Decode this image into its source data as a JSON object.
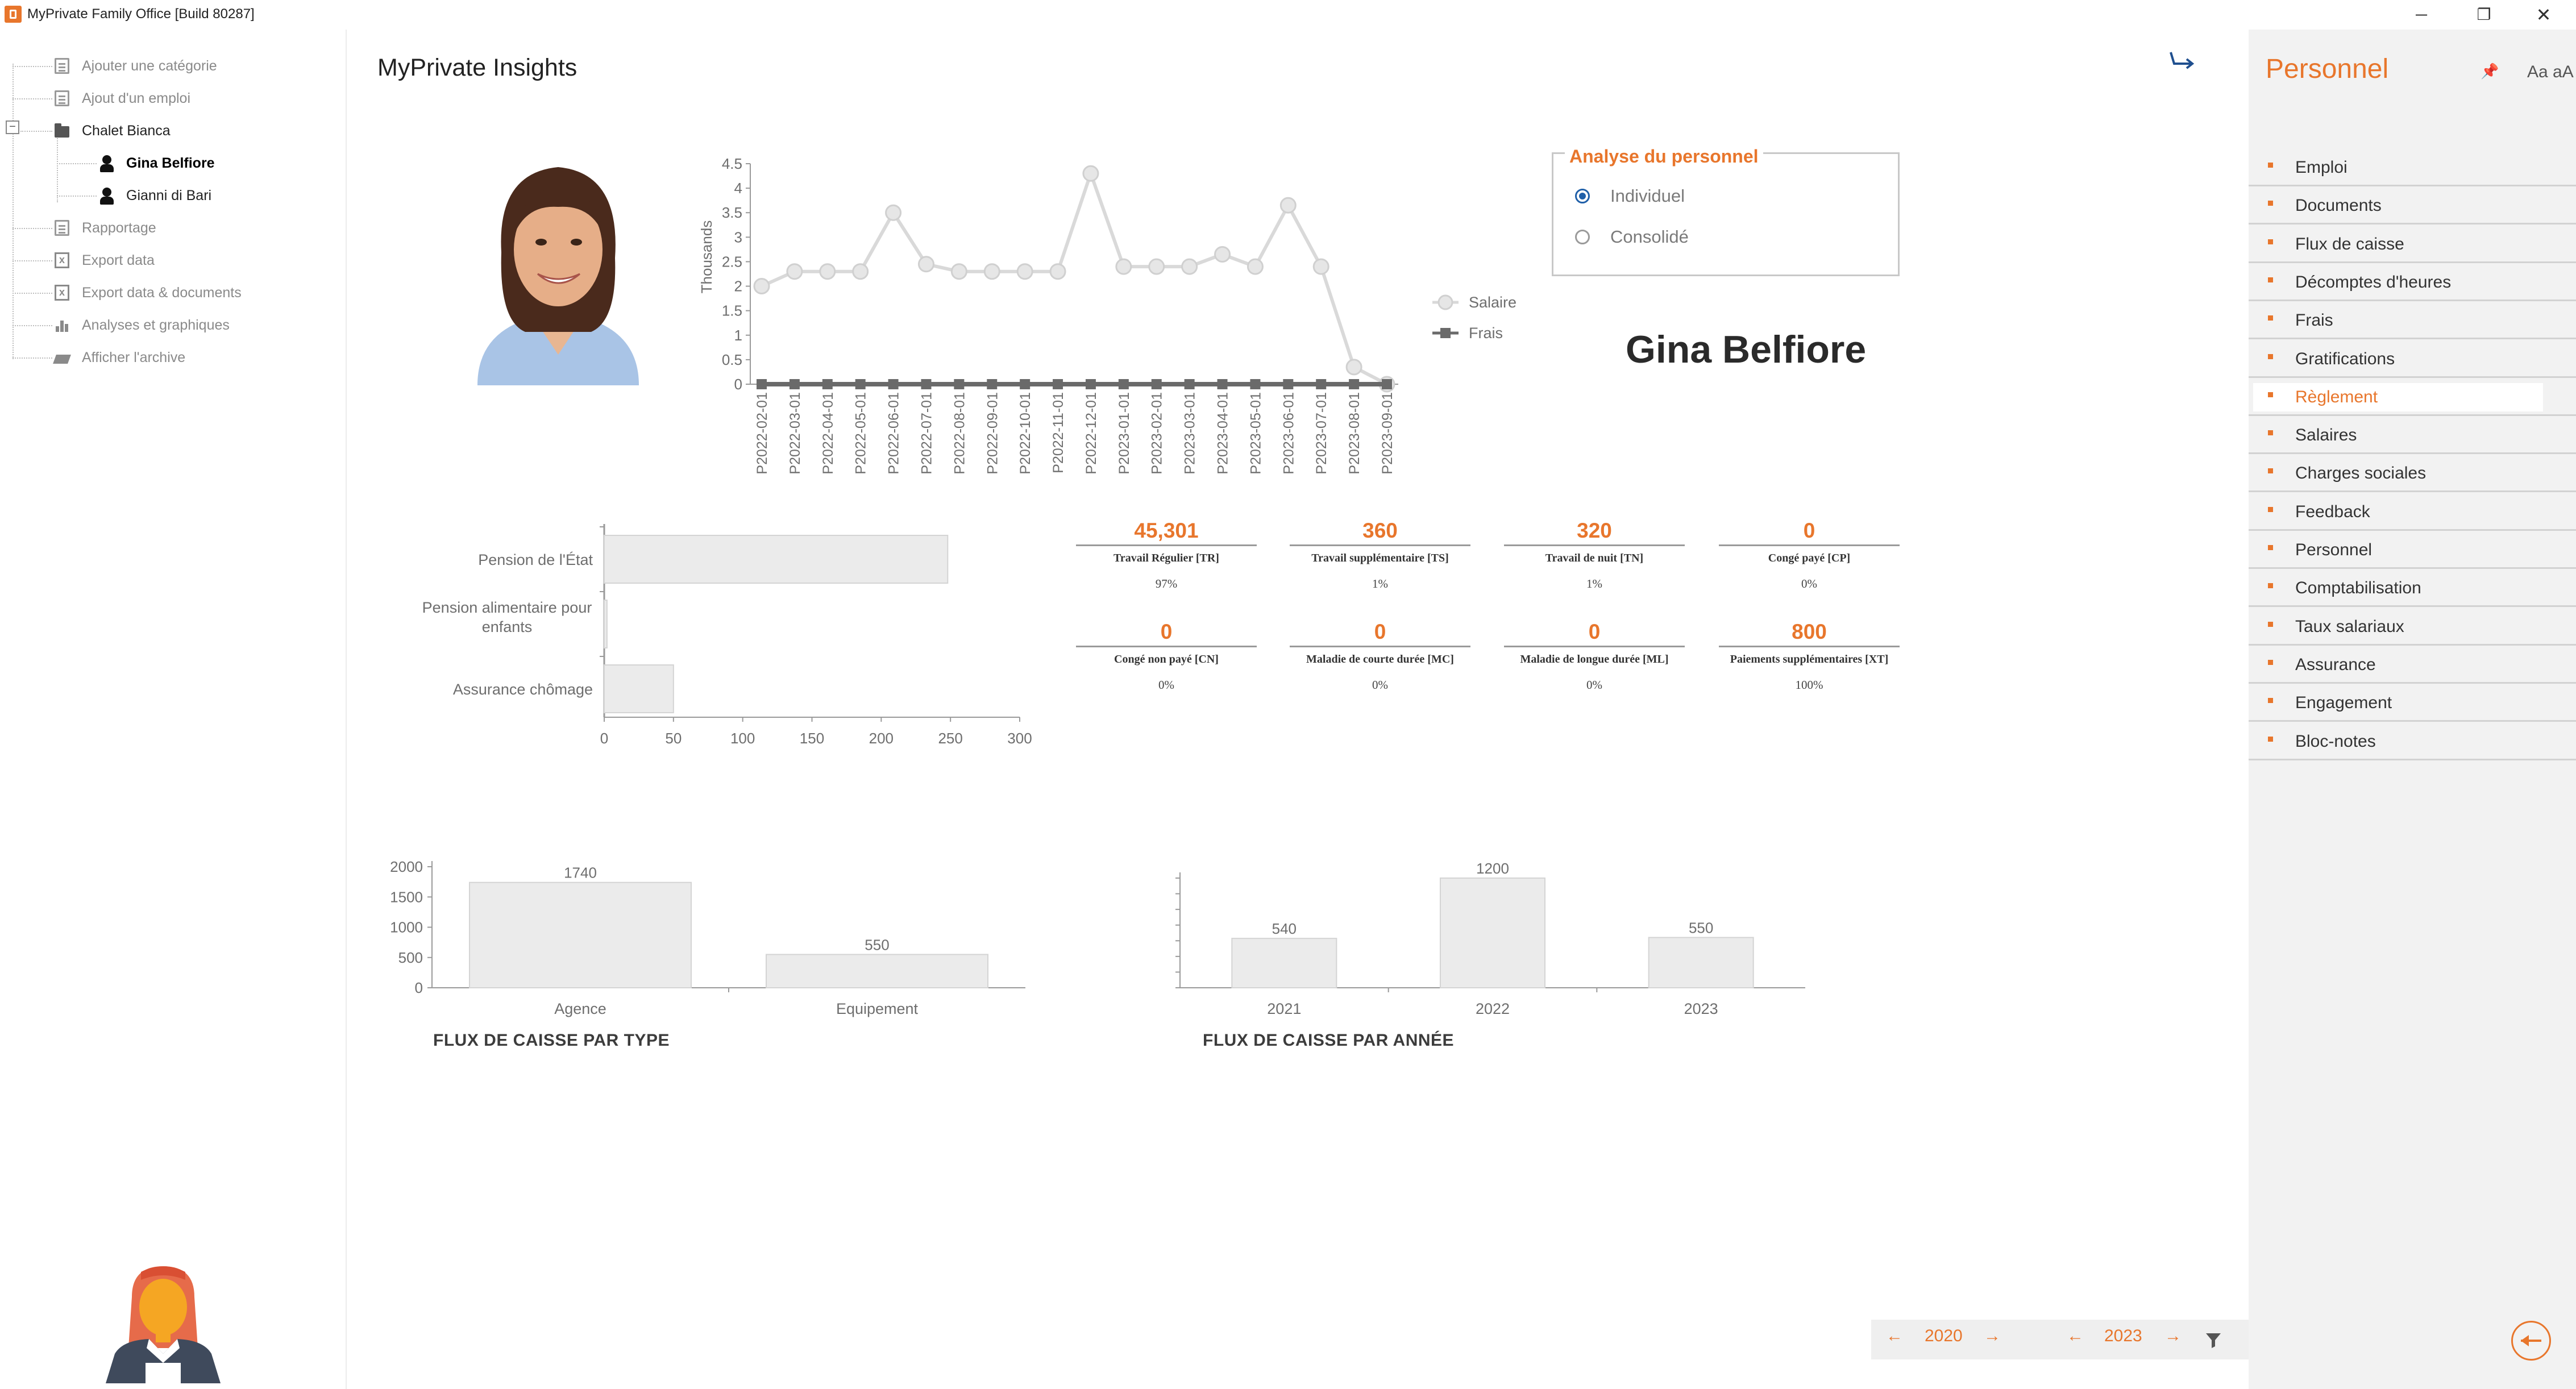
{
  "window": {
    "title": "MyPrivate Family Office [Build 80287]",
    "minimize": "─",
    "restore": "❐",
    "close": "✕"
  },
  "tree": {
    "items": [
      {
        "label": "Ajouter une catégorie",
        "icon": "add-category-icon"
      },
      {
        "label": "Ajout d'un emploi",
        "icon": "add-job-icon"
      },
      {
        "label": "Chalet Bianca",
        "icon": "folder-icon"
      },
      {
        "label": "Gina Belfiore",
        "icon": "employee-female-icon"
      },
      {
        "label": "Gianni di Bari",
        "icon": "employee-male-icon"
      },
      {
        "label": "Rapportage",
        "icon": "report-icon"
      },
      {
        "label": "Export data",
        "icon": "excel-export-icon"
      },
      {
        "label": "Export data & documents",
        "icon": "excel-export-icon"
      },
      {
        "label": "Analyses et graphiques",
        "icon": "bar-chart-icon"
      },
      {
        "label": "Afficher l'archive",
        "icon": "archive-icon"
      }
    ],
    "collapse_symbol": "−"
  },
  "main": {
    "title": "MyPrivate Insights",
    "employee_name": "Gina Belfiore",
    "analysis": {
      "title": "Analyse du personnel",
      "options": [
        {
          "label": "Individuel",
          "checked": true
        },
        {
          "label": "Consolidé",
          "checked": false
        }
      ]
    },
    "kpis": [
      {
        "value": "45,301",
        "label": "Travail Régulier [TR]",
        "pct": "97%"
      },
      {
        "value": "360",
        "label": "Travail supplémentaire [TS]",
        "pct": "1%"
      },
      {
        "value": "320",
        "label": "Travail de nuit [TN]",
        "pct": "1%"
      },
      {
        "value": "0",
        "label": "Congé payé [CP]",
        "pct": "0%"
      },
      {
        "value": "0",
        "label": "Congé non payé [CN]",
        "pct": "0%"
      },
      {
        "value": "0",
        "label": "Maladie de courte durée [MC]",
        "pct": "0%"
      },
      {
        "value": "0",
        "label": "Maladie de longue durée [ML]",
        "pct": "0%"
      },
      {
        "value": "800",
        "label": "Paiements supplémentaires [XT]",
        "pct": "100%"
      }
    ],
    "cashflow_type_caption": "FLUX DE CAISSE PAR TYPE",
    "cashflow_year_caption": "FLUX DE CAISSE PAR ANNÉE",
    "year_nav": {
      "from": "2020",
      "to": "2023",
      "prev": "←",
      "next": "→",
      "filter_icon": "filter-icon"
    }
  },
  "right_panel": {
    "title": "Personnel",
    "pin_icon": "pin-icon",
    "font_toggle": "Aa aA",
    "items": [
      {
        "label": "Emploi",
        "active": false
      },
      {
        "label": "Documents",
        "active": false
      },
      {
        "label": "Flux de caisse",
        "active": false
      },
      {
        "label": "Décomptes d'heures",
        "active": false
      },
      {
        "label": "Frais",
        "active": false
      },
      {
        "label": "Gratifications",
        "active": false
      },
      {
        "label": "Règlement",
        "active": true
      },
      {
        "label": "Salaires",
        "active": false
      },
      {
        "label": "Charges sociales",
        "active": false
      },
      {
        "label": "Feedback",
        "active": false
      },
      {
        "label": "Personnel",
        "active": false
      },
      {
        "label": "Comptabilisation",
        "active": false
      },
      {
        "label": "Taux salariaux",
        "active": false
      },
      {
        "label": "Assurance",
        "active": false
      },
      {
        "label": "Engagement",
        "active": false
      },
      {
        "label": "Bloc-notes",
        "active": false
      }
    ]
  },
  "colors": {
    "accent": "#e8762c",
    "radio_selected": "#1f5fa8",
    "salary_line": "#d9d9d9",
    "expense_line": "#6a6a6a",
    "bar_fill": "#ebebeb"
  },
  "chart_data": [
    {
      "type": "line",
      "ylabel": "Thousands",
      "ylim": [
        0,
        4.5
      ],
      "yticks": [
        "0",
        "0.5",
        "1",
        "1.5",
        "2",
        "2.5",
        "3",
        "3.5",
        "4",
        "4.5"
      ],
      "x": [
        "P2022-02-01",
        "P2022-03-01",
        "P2022-04-01",
        "P2022-05-01",
        "P2022-06-01",
        "P2022-07-01",
        "P2022-08-01",
        "P2022-09-01",
        "P2022-10-01",
        "P2022-11-01",
        "P2022-12-01",
        "P2023-01-01",
        "P2023-02-01",
        "P2023-03-01",
        "P2023-04-01",
        "P2023-05-01",
        "P2023-06-01",
        "P2023-07-01",
        "P2023-08-01",
        "P2023-09-01"
      ],
      "series": [
        {
          "name": "Salaire",
          "values": [
            2.0,
            2.3,
            2.3,
            2.3,
            3.5,
            2.45,
            2.3,
            2.3,
            2.3,
            2.3,
            4.3,
            2.4,
            2.4,
            2.4,
            2.65,
            2.4,
            3.65,
            2.4,
            0.35,
            0.0
          ]
        },
        {
          "name": "Frais",
          "values": [
            0,
            0,
            0,
            0,
            0,
            0,
            0,
            0,
            0,
            0,
            0,
            0,
            0,
            0,
            0,
            0,
            0,
            0,
            0,
            0
          ]
        }
      ],
      "legend": "right"
    },
    {
      "type": "bar",
      "orientation": "horizontal",
      "categories": [
        "Pension de l'État",
        "Pension alimentaire pour enfants",
        "Assurance chômage"
      ],
      "values": [
        248,
        2,
        50
      ],
      "xlim": [
        0,
        300
      ],
      "xticks": [
        "0",
        "50",
        "100",
        "150",
        "200",
        "250",
        "300"
      ]
    },
    {
      "type": "bar",
      "categories": [
        "Agence",
        "Equipement"
      ],
      "values": [
        1740,
        550
      ],
      "data_labels": [
        "1740",
        "550"
      ],
      "ylim": [
        0,
        2000
      ],
      "yticks": [
        "0",
        "500",
        "1000",
        "1500",
        "2000"
      ],
      "title": "FLUX DE CAISSE PAR TYPE"
    },
    {
      "type": "bar",
      "categories": [
        "2021",
        "2022",
        "2023"
      ],
      "values": [
        540,
        1200,
        550
      ],
      "data_labels": [
        "540",
        "1200",
        "550"
      ],
      "ylim": [
        0,
        1200
      ],
      "title": "FLUX DE CAISSE PAR ANNÉE"
    }
  ]
}
